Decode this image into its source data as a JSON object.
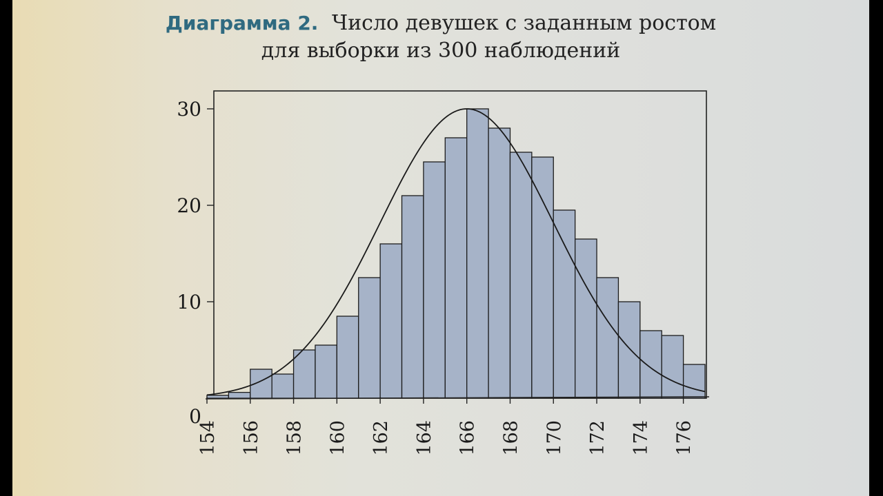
{
  "figure": {
    "label": "Диаграмма 2.",
    "title_line1": "Число девушек с заданным ростом",
    "title_line2": "для выборки из 300 наблюдений"
  },
  "chart_data": {
    "type": "bar",
    "title": "Число девушек с заданным ростом для выборки из 300 наблюдений",
    "xlabel": "",
    "ylabel": "",
    "x_ticks": [
      "154",
      "156",
      "158",
      "160",
      "162",
      "164",
      "166",
      "168",
      "170",
      "172",
      "174",
      "176"
    ],
    "y_ticks": [
      "0",
      "10",
      "20",
      "30"
    ],
    "xlim": [
      154,
      177
    ],
    "ylim": [
      0,
      30
    ],
    "bin_width": 1,
    "bins_left_edge": [
      154,
      155,
      156,
      157,
      158,
      159,
      160,
      161,
      162,
      163,
      164,
      165,
      166,
      167,
      168,
      169,
      170,
      171,
      172,
      173,
      174,
      175,
      176
    ],
    "values": [
      0.3,
      0.6,
      3,
      2.5,
      5,
      5.5,
      8.5,
      12.5,
      16,
      21,
      24.5,
      27,
      30,
      28,
      25.5,
      25,
      19.5,
      16.5,
      12.5,
      10,
      7,
      6.5,
      3.5
    ],
    "curve": {
      "type": "normal",
      "mean": 166,
      "sd": 4,
      "peak": 30
    },
    "bar_color": "#a6b3c8",
    "grid": false
  }
}
